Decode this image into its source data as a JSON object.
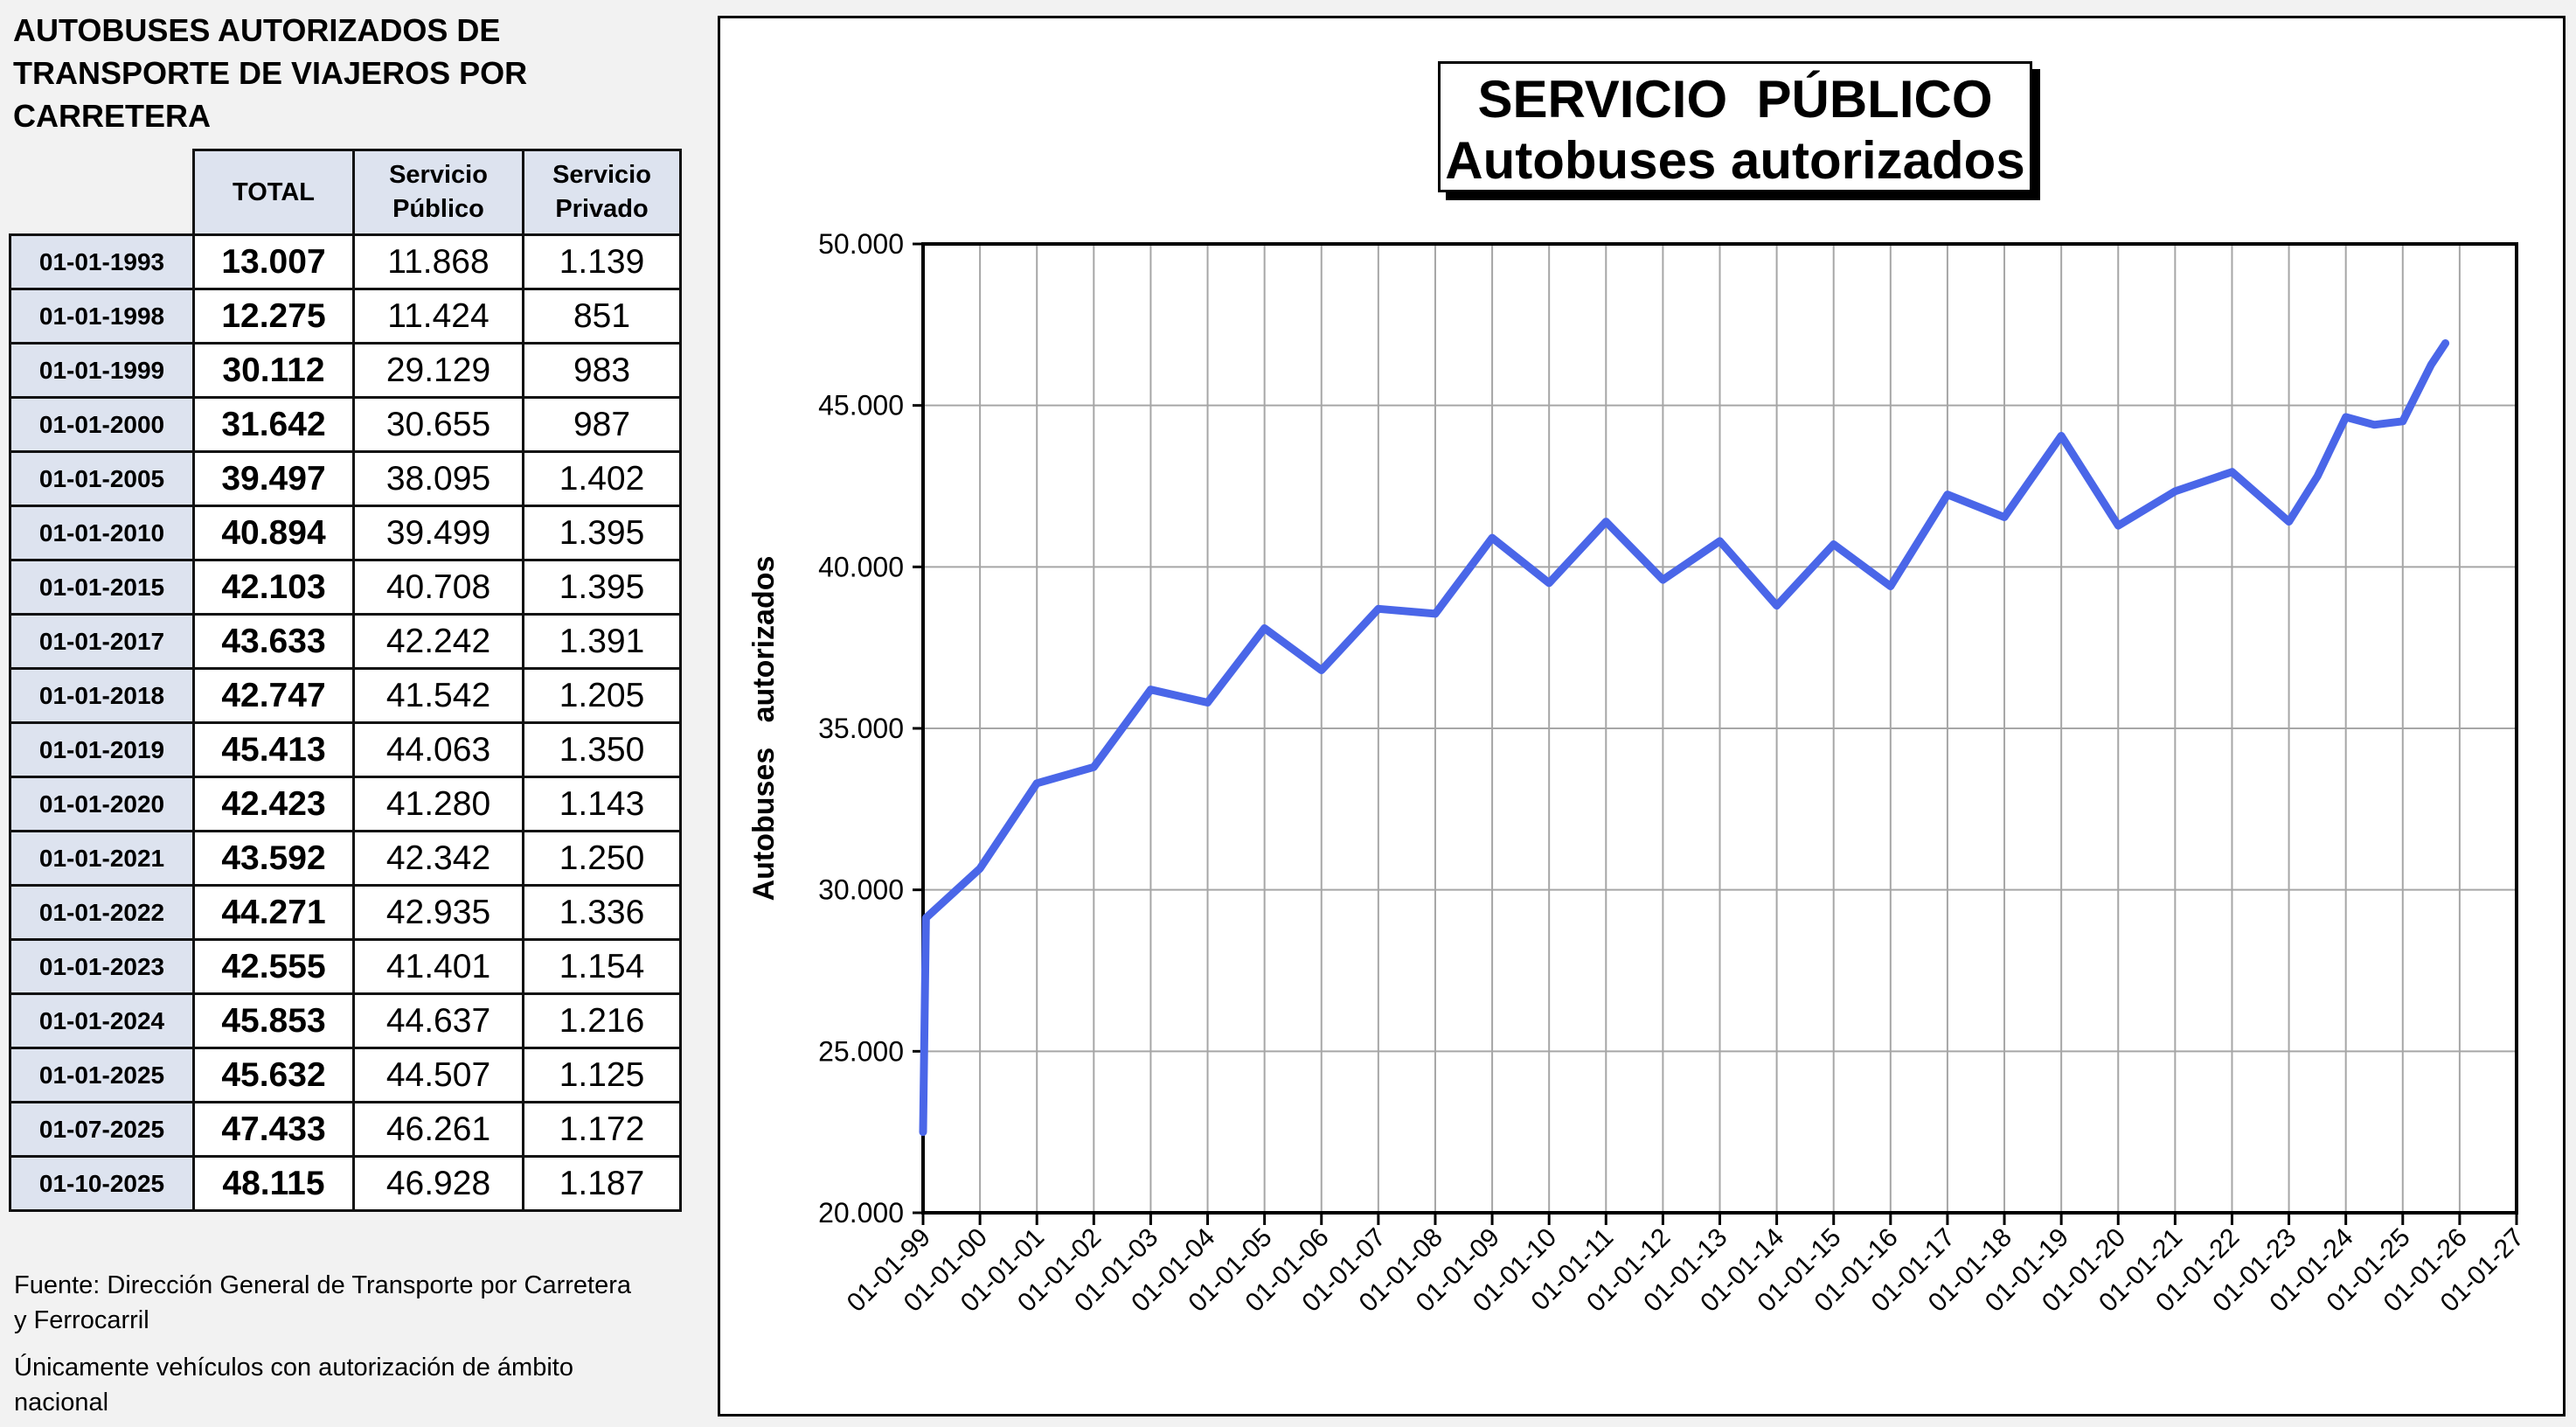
{
  "heading": {
    "line1": "AUTOBUSES AUTORIZADOS DE",
    "line2": "TRANSPORTE DE VIAJEROS POR",
    "line3": "CARRETERA"
  },
  "table": {
    "headers": {
      "total": "TOTAL",
      "publico_line1": "Servicio",
      "publico_line2": "Público",
      "privado_line1": "Servicio",
      "privado_line2": "Privado"
    },
    "rows": [
      {
        "date": "01-01-1993",
        "total": "13.007",
        "publico": "11.868",
        "privado": "1.139"
      },
      {
        "date": "01-01-1998",
        "total": "12.275",
        "publico": "11.424",
        "privado": "851"
      },
      {
        "date": "01-01-1999",
        "total": "30.112",
        "publico": "29.129",
        "privado": "983"
      },
      {
        "date": "01-01-2000",
        "total": "31.642",
        "publico": "30.655",
        "privado": "987"
      },
      {
        "date": "01-01-2005",
        "total": "39.497",
        "publico": "38.095",
        "privado": "1.402"
      },
      {
        "date": "01-01-2010",
        "total": "40.894",
        "publico": "39.499",
        "privado": "1.395"
      },
      {
        "date": "01-01-2015",
        "total": "42.103",
        "publico": "40.708",
        "privado": "1.395"
      },
      {
        "date": "01-01-2017",
        "total": "43.633",
        "publico": "42.242",
        "privado": "1.391"
      },
      {
        "date": "01-01-2018",
        "total": "42.747",
        "publico": "41.542",
        "privado": "1.205"
      },
      {
        "date": "01-01-2019",
        "total": "45.413",
        "publico": "44.063",
        "privado": "1.350"
      },
      {
        "date": "01-01-2020",
        "total": "42.423",
        "publico": "41.280",
        "privado": "1.143"
      },
      {
        "date": "01-01-2021",
        "total": "43.592",
        "publico": "42.342",
        "privado": "1.250"
      },
      {
        "date": "01-01-2022",
        "total": "44.271",
        "publico": "42.935",
        "privado": "1.336"
      },
      {
        "date": "01-01-2023",
        "total": "42.555",
        "publico": "41.401",
        "privado": "1.154"
      },
      {
        "date": "01-01-2024",
        "total": "45.853",
        "publico": "44.637",
        "privado": "1.216"
      },
      {
        "date": "01-01-2025",
        "total": "45.632",
        "publico": "44.507",
        "privado": "1.125"
      },
      {
        "date": "01-07-2025",
        "total": "47.433",
        "publico": "46.261",
        "privado": "1.172"
      },
      {
        "date": "01-10-2025",
        "total": "48.115",
        "publico": "46.928",
        "privado": "1.187"
      }
    ]
  },
  "notes": {
    "source_line1": "Fuente: Dirección General de Transporte por Carretera",
    "source_line2": "y Ferrocarril",
    "scope_line1": "Únicamente vehículos con autorización de ámbito",
    "scope_line2": "nacional"
  },
  "chart_data": {
    "type": "line",
    "title_line1": "SERVICIO  PÚBLICO",
    "title_line2": "Autobuses autorizados",
    "xlabel": "",
    "ylabel": "Autobuses   autorizados",
    "ylim": [
      20000,
      50000
    ],
    "yticks": [
      20000,
      25000,
      30000,
      35000,
      40000,
      45000,
      50000
    ],
    "ytick_labels": [
      "20.000",
      "25.000",
      "30.000",
      "35.000",
      "40.000",
      "45.000",
      "50.000"
    ],
    "xlim": [
      1999,
      2027
    ],
    "xtick_labels": [
      "01-01-99",
      "01-01-00",
      "01-01-01",
      "01-01-02",
      "01-01-03",
      "01-01-04",
      "01-01-05",
      "01-01-06",
      "01-01-07",
      "01-01-08",
      "01-01-09",
      "01-01-10",
      "01-01-11",
      "01-01-12",
      "01-01-13",
      "01-01-14",
      "01-01-15",
      "01-01-16",
      "01-01-17",
      "01-01-18",
      "01-01-19",
      "01-01-20",
      "01-01-21",
      "01-01-22",
      "01-01-23",
      "01-01-24",
      "01-01-25",
      "01-01-26",
      "01-01-27"
    ],
    "grid": true,
    "line_color": "#4a66e8",
    "series": [
      {
        "x": [
          1999.0,
          1999.05,
          2000.0,
          2001.0,
          2002.0,
          2003.0,
          2004.0,
          2005.0,
          2006.0,
          2007.0,
          2008.0,
          2009.0,
          2010.0,
          2011.0,
          2012.0,
          2013.0,
          2014.0,
          2015.0,
          2016.0,
          2017.0,
          2018.0,
          2019.0,
          2020.0,
          2021.0,
          2022.0,
          2023.0,
          2023.5,
          2024.0,
          2024.5,
          2025.0,
          2025.5,
          2025.75
        ],
        "y": [
          22500,
          29130,
          30660,
          33300,
          33800,
          36200,
          35800,
          38100,
          36800,
          38700,
          38550,
          40900,
          39500,
          41400,
          39600,
          40800,
          38800,
          40700,
          39400,
          42240,
          41540,
          44060,
          41280,
          42340,
          42940,
          41400,
          42800,
          44640,
          44400,
          44510,
          46261,
          46928
        ]
      }
    ]
  }
}
